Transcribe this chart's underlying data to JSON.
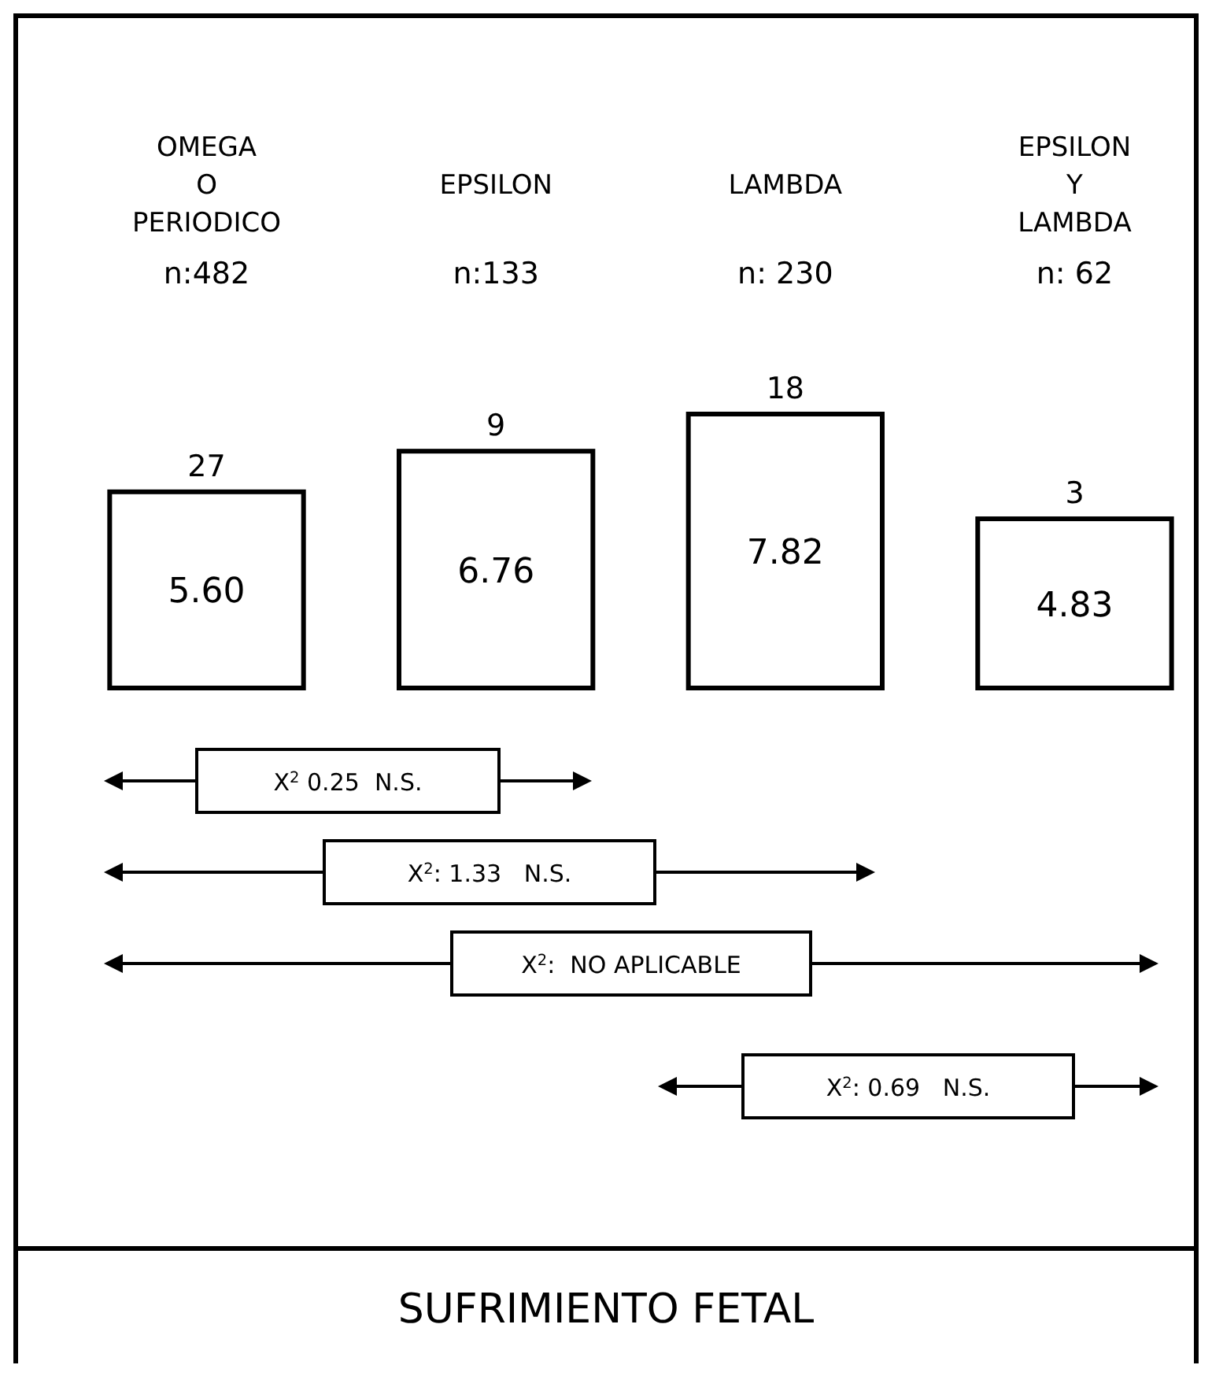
{
  "chart_data": {
    "type": "bar",
    "title": "SUFRIMIENTO FETAL",
    "categories": [
      "OMEGA O PERIODICO",
      "EPSILON",
      "LAMBDA",
      "EPSILON Y LAMBDA"
    ],
    "values": [
      5.6,
      6.76,
      7.82,
      4.83
    ],
    "value_labels": [
      "5.60",
      "6.76",
      "7.82",
      "4.83"
    ],
    "color": "#ffffff",
    "annotations": [
      "n:482",
      "n:133",
      "n: 230",
      "n: 62",
      {
        "text": "27",
        "x": "OMEGA O PERIODICO",
        "y": 5.6
      },
      {
        "text": "9",
        "x": "EPSILON",
        "y": 6.76
      },
      {
        "text": "18",
        "x": "LAMBDA",
        "y": 7.82
      },
      {
        "text": "3",
        "x": "EPSILON Y LAMBDA",
        "y": 4.83
      },
      "X$^{2}$ 0.25  N.S.",
      "X$^{2}$: 1.33   N.S.",
      "X$^{2}$:  NO APLICABLE",
      "X$^{2}$: 0.69   N.S."
    ]
  }
}
